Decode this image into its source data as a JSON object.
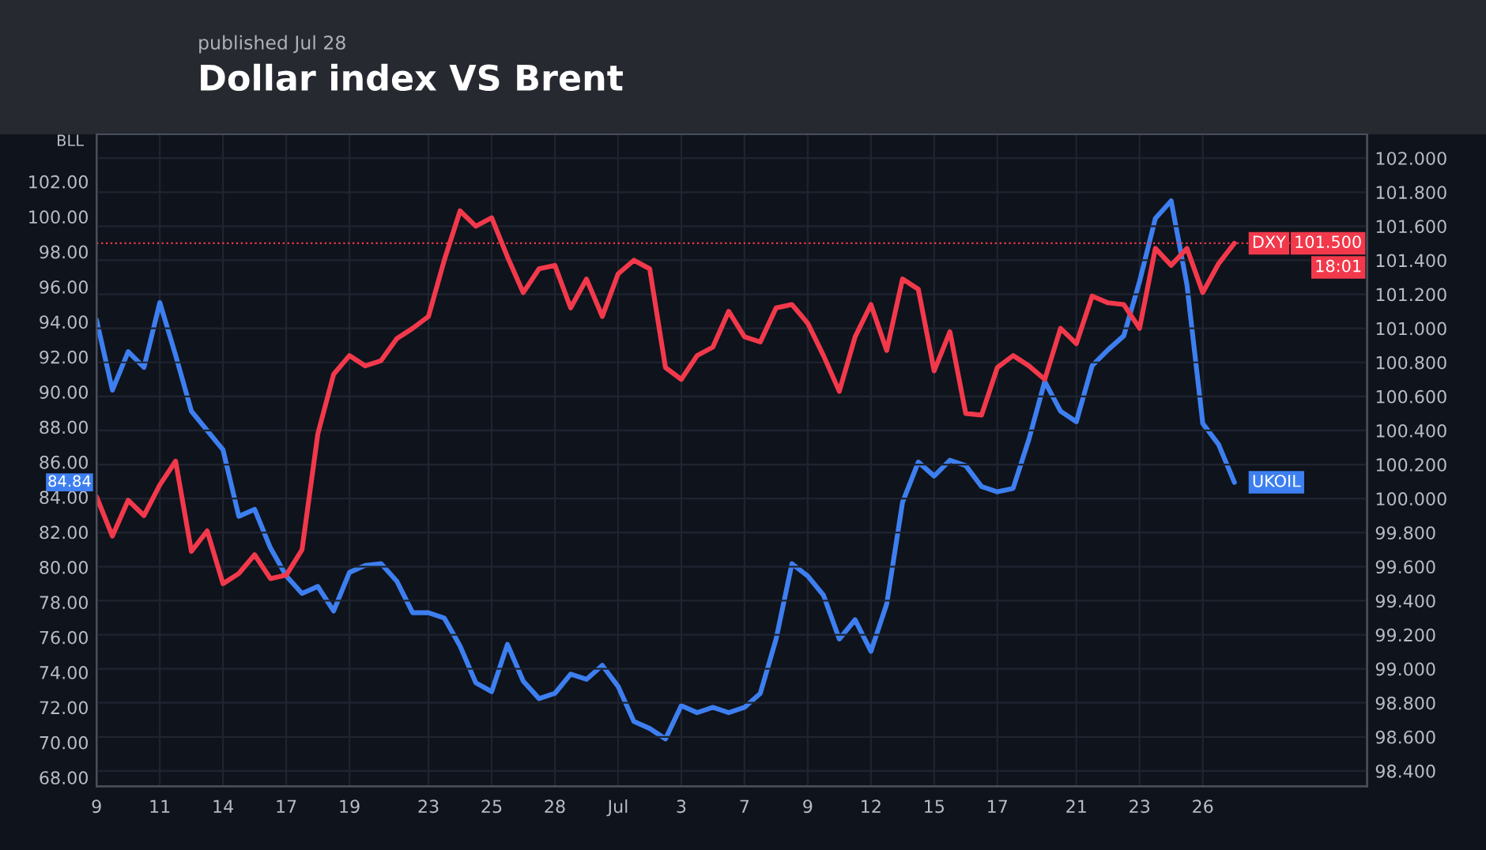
{
  "chart_data": {
    "type": "line",
    "title": "Dollar index VS Brent",
    "subtitle": "published Jul 28",
    "ylabel": "BLL",
    "categories": [
      "9",
      null,
      null,
      null,
      "11",
      null,
      null,
      null,
      "14",
      null,
      null,
      null,
      "17",
      null,
      null,
      null,
      "19",
      null,
      null,
      null,
      null,
      "23",
      null,
      null,
      null,
      "25",
      null,
      null,
      null,
      "28",
      null,
      null,
      null,
      "Jul",
      null,
      null,
      null,
      "3",
      null,
      null,
      null,
      "7",
      null,
      null,
      null,
      "9",
      null,
      null,
      null,
      "12",
      null,
      null,
      null,
      "15",
      null,
      null,
      null,
      "17",
      null,
      null,
      null,
      null,
      "21",
      null,
      null,
      null,
      "23",
      null,
      null,
      null,
      "26",
      null,
      null,
      null,
      null,
      null,
      null,
      null,
      null,
      null,
      null
    ],
    "ylim": [
      67.5,
      104.7
    ],
    "yticks": [
      {
        "value": 68,
        "label": "68.00"
      },
      {
        "value": 70,
        "label": "70.00"
      },
      {
        "value": 72,
        "label": "72.00"
      },
      {
        "value": 74,
        "label": "74.00"
      },
      {
        "value": 76,
        "label": "76.00"
      },
      {
        "value": 78,
        "label": "78.00"
      },
      {
        "value": 80,
        "label": "80.00"
      },
      {
        "value": 82,
        "label": "82.00"
      },
      {
        "value": 84,
        "label": "84.00"
      },
      {
        "value": 86,
        "label": "86.00"
      },
      {
        "value": 88,
        "label": "88.00"
      },
      {
        "value": 90,
        "label": "90.00"
      },
      {
        "value": 92,
        "label": "92.00"
      },
      {
        "value": 94,
        "label": "94.00"
      },
      {
        "value": 96,
        "label": "96.00"
      },
      {
        "value": 98,
        "label": "98.00"
      },
      {
        "value": 100,
        "label": "100.00"
      },
      {
        "value": 102,
        "label": "102.00"
      }
    ],
    "y2lim": [
      98.31,
      102.14
    ],
    "y2ticks": [
      {
        "value": 98.4,
        "label": "98.400"
      },
      {
        "value": 98.6,
        "label": "98.600"
      },
      {
        "value": 98.8,
        "label": "98.800"
      },
      {
        "value": 99.0,
        "label": "99.000"
      },
      {
        "value": 99.2,
        "label": "99.200"
      },
      {
        "value": 99.4,
        "label": "99.400"
      },
      {
        "value": 99.6,
        "label": "99.600"
      },
      {
        "value": 99.8,
        "label": "99.800"
      },
      {
        "value": 100.0,
        "label": "100.000"
      },
      {
        "value": 100.2,
        "label": "100.200"
      },
      {
        "value": 100.4,
        "label": "100.400"
      },
      {
        "value": 100.6,
        "label": "100.600"
      },
      {
        "value": 100.8,
        "label": "100.800"
      },
      {
        "value": 101.0,
        "label": "101.000"
      },
      {
        "value": 101.2,
        "label": "101.200"
      },
      {
        "value": 101.4,
        "label": "101.400"
      },
      {
        "value": 101.6,
        "label": "101.600"
      },
      {
        "value": 101.8,
        "label": "101.800"
      },
      {
        "value": 102.0,
        "label": "102.000"
      }
    ],
    "grid": true,
    "series": [
      {
        "name": "UKOIL",
        "color": "#3d7ff0",
        "values": [
          94.1,
          90.1,
          92.3,
          91.4,
          95.1,
          92.1,
          88.9,
          87.8,
          86.7,
          82.9,
          83.3,
          81.1,
          79.5,
          78.5,
          78.9,
          77.5,
          79.7,
          80.1,
          80.2,
          79.2,
          77.4,
          77.4,
          77.1,
          75.5,
          73.4,
          72.9,
          75.6,
          73.5,
          72.5,
          72.8,
          73.9,
          73.6,
          74.4,
          73.2,
          71.2,
          70.8,
          70.2,
          72.1,
          71.7,
          72.0,
          71.7,
          72.0,
          72.8,
          75.9,
          80.2,
          79.5,
          78.4,
          75.9,
          77.0,
          75.2,
          77.9,
          83.7,
          86.0,
          85.2,
          86.1,
          85.8,
          84.6,
          84.3,
          84.5,
          87.3,
          90.6,
          88.9,
          88.3,
          91.5,
          92.4,
          93.2,
          96.3,
          99.9,
          100.9,
          96.1,
          88.2,
          87.0,
          84.84,
          null,
          null,
          null,
          null,
          null,
          null,
          null,
          null
        ]
      },
      {
        "name": "DXY",
        "color": "#f2394b",
        "axis": "y2",
        "values": [
          100.01,
          99.78,
          99.99,
          99.9,
          100.08,
          100.22,
          99.69,
          99.81,
          99.5,
          99.56,
          99.67,
          99.53,
          99.55,
          99.7,
          100.38,
          100.73,
          100.84,
          100.78,
          100.81,
          100.94,
          101.0,
          101.07,
          101.4,
          101.69,
          101.6,
          101.65,
          101.42,
          101.21,
          101.35,
          101.37,
          101.12,
          101.29,
          101.07,
          101.32,
          101.4,
          101.35,
          100.77,
          100.7,
          100.84,
          100.89,
          101.1,
          100.95,
          100.92,
          101.12,
          101.14,
          101.03,
          100.84,
          100.63,
          100.95,
          101.14,
          100.87,
          101.29,
          101.23,
          100.75,
          100.98,
          100.5,
          100.49,
          100.77,
          100.84,
          100.78,
          100.7,
          101.0,
          100.91,
          101.19,
          101.15,
          101.14,
          101.0,
          101.47,
          101.37,
          101.47,
          101.21,
          101.38,
          101.5,
          null,
          null,
          null,
          null,
          null,
          null,
          null,
          null
        ]
      }
    ],
    "ref_lines": [
      {
        "axis": "y2",
        "value": 101.5,
        "label": "101.500",
        "color": "#f2394b",
        "line_style": "dotted"
      }
    ],
    "annotations": [
      {
        "text": "84.84",
        "y": 84.84
      },
      "18:01"
    ]
  }
}
